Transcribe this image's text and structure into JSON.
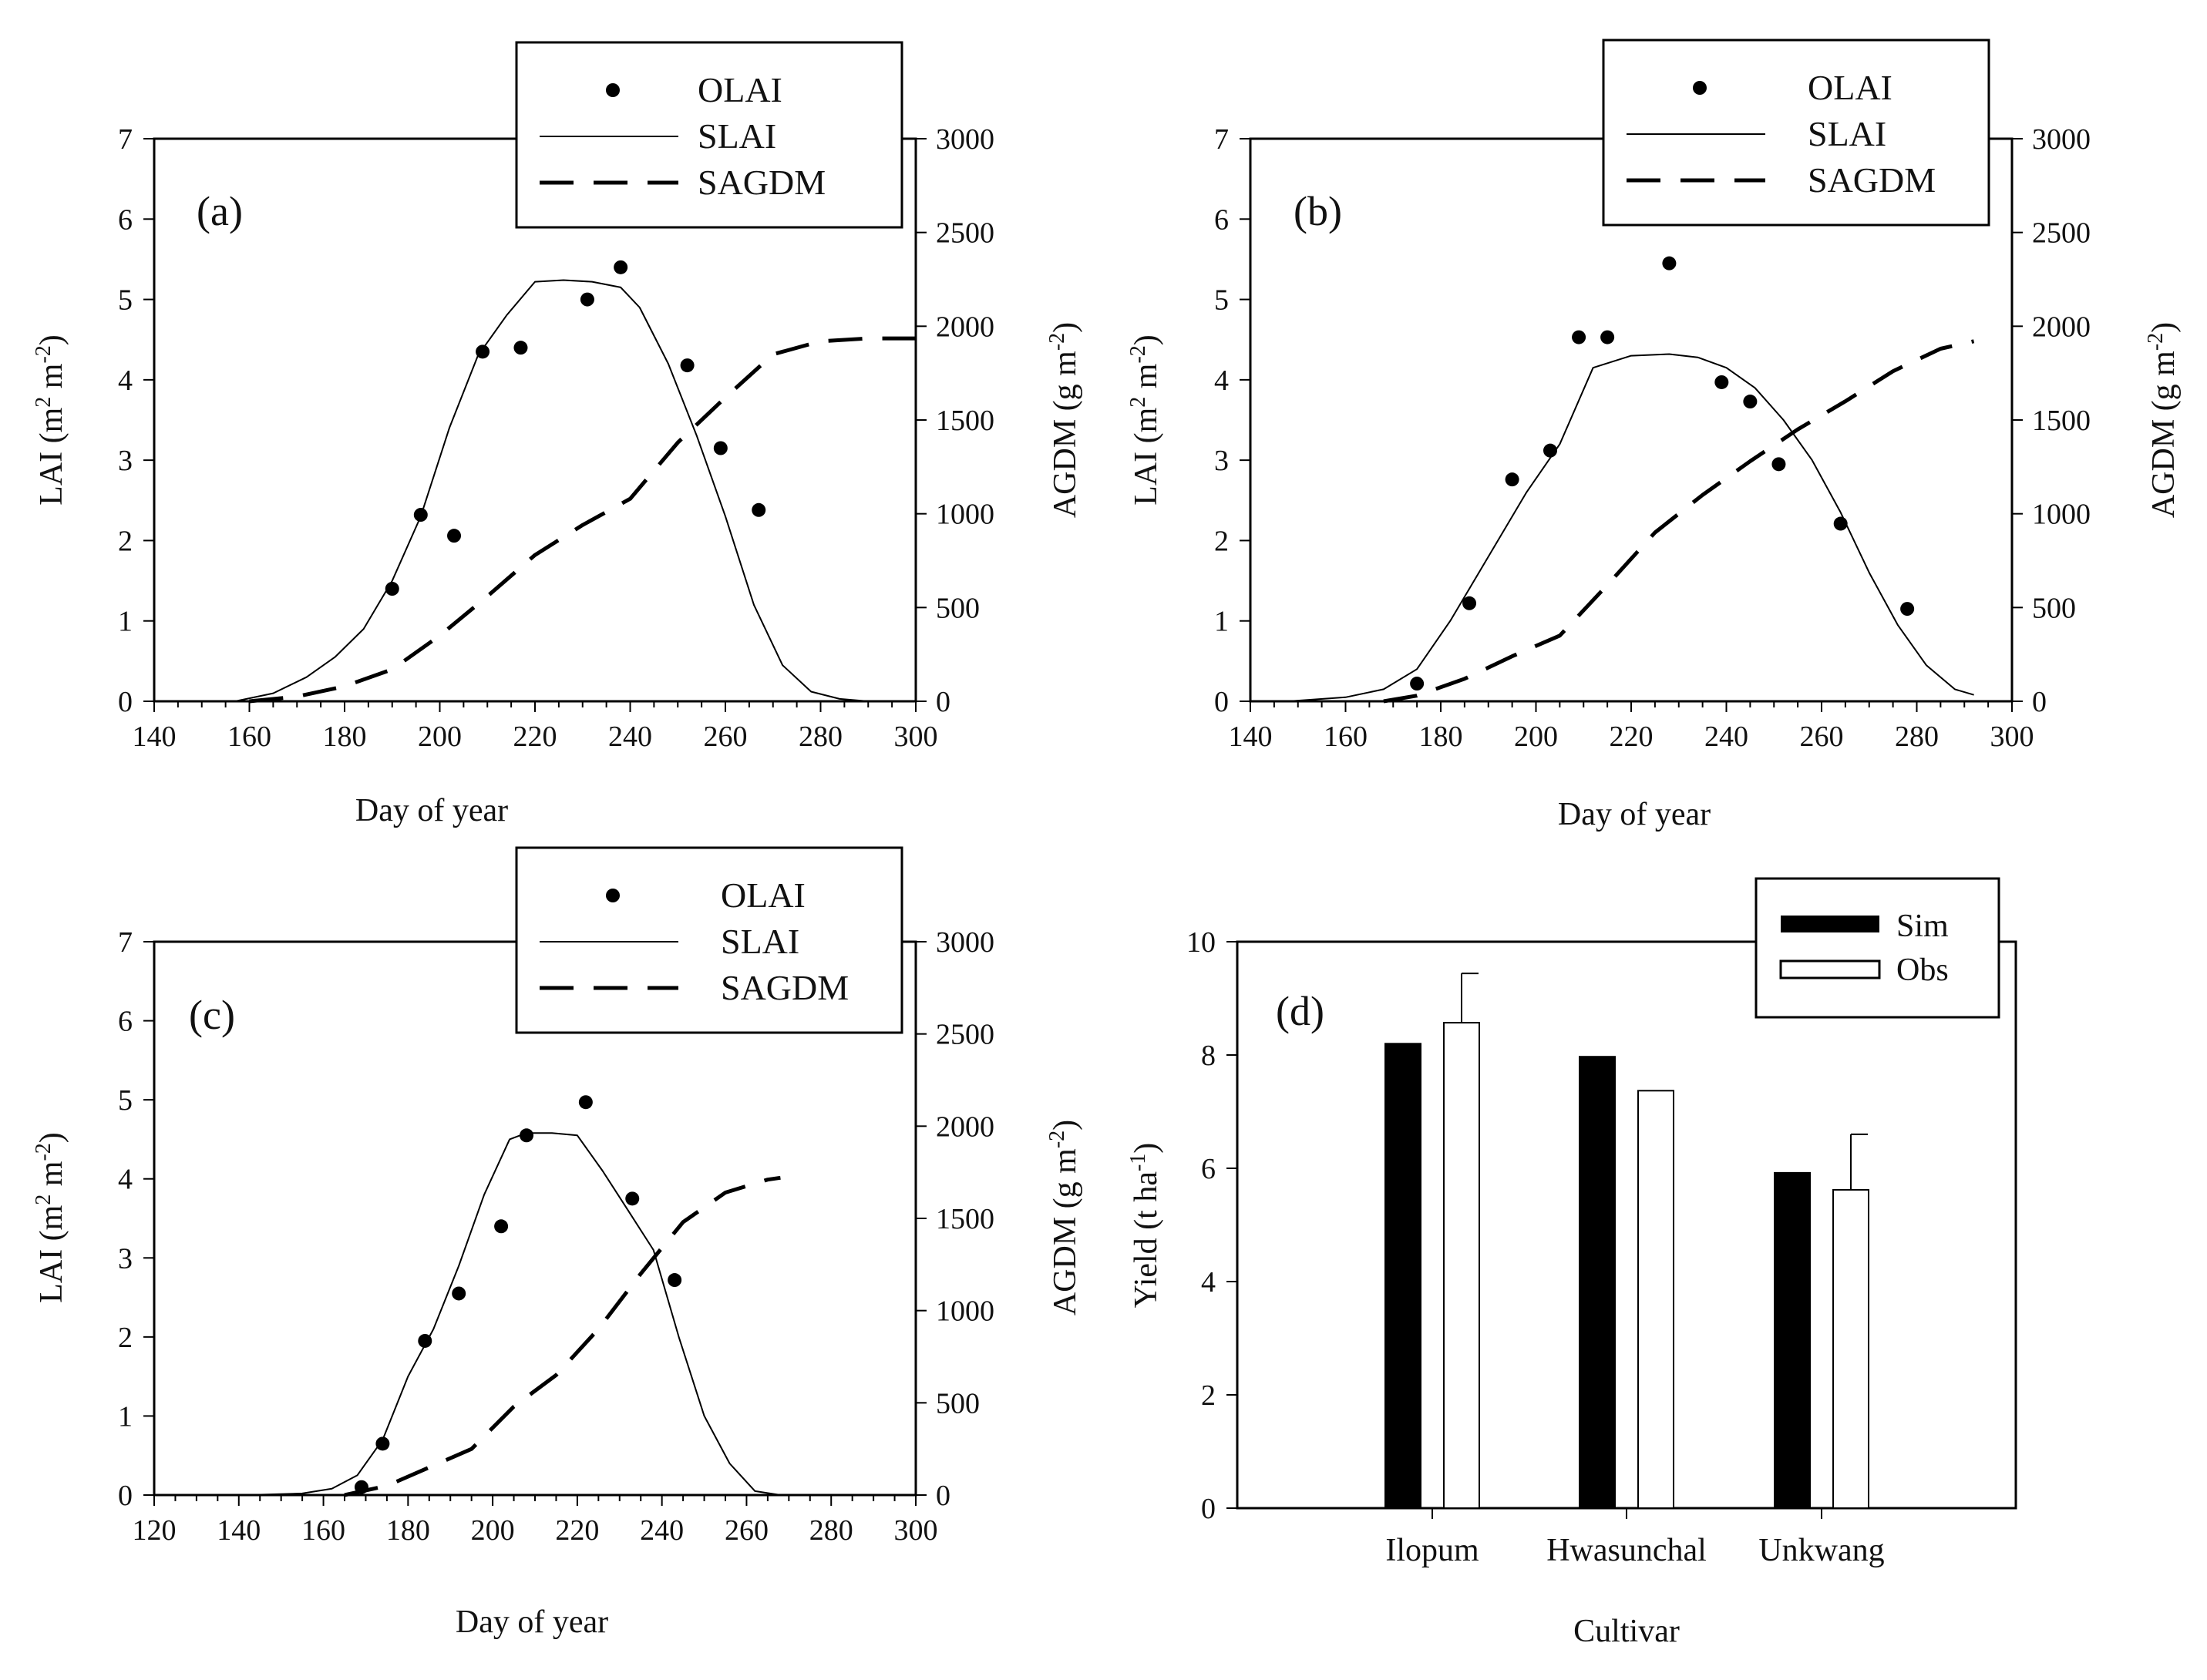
{
  "chart_data": [
    {
      "type": "line",
      "panel_label": "(a)",
      "xlabel": "Day of year",
      "ylabel_main": "LAI (m",
      "ylabel_sup1": "2",
      "ylabel_mid": " m",
      "ylabel_sup2": "-2",
      "ylabel_end": ")",
      "y2label_main": "AGDM (g m",
      "y2label_sup": "-2",
      "y2label_end": ")",
      "xlim": [
        140,
        300
      ],
      "xticks": [
        140,
        160,
        180,
        200,
        220,
        240,
        260,
        280,
        300
      ],
      "ylim": [
        0,
        7
      ],
      "yticks": [
        0,
        1,
        2,
        3,
        4,
        5,
        6,
        7
      ],
      "y2lim": [
        0,
        3000
      ],
      "y2ticks": [
        0,
        500,
        1000,
        1500,
        2000,
        2500,
        3000
      ],
      "legend": [
        "OLAI",
        "SLAI",
        "SAGDM"
      ],
      "series": [
        {
          "name": "OLAI",
          "style": "points",
          "axis": "left",
          "x": [
            190,
            196,
            203,
            209,
            217,
            231,
            238,
            252,
            259,
            267
          ],
          "y": [
            1.4,
            2.32,
            2.06,
            4.35,
            4.4,
            5.0,
            5.4,
            4.18,
            3.15,
            2.38
          ]
        },
        {
          "name": "SLAI",
          "style": "solid",
          "axis": "left",
          "x": [
            157,
            165,
            172,
            178,
            184,
            190,
            196,
            202,
            208,
            214,
            220,
            226,
            232,
            238,
            242,
            248,
            254,
            260,
            266,
            272,
            278,
            284,
            290,
            300
          ],
          "y": [
            0.0,
            0.1,
            0.3,
            0.55,
            0.9,
            1.5,
            2.3,
            3.4,
            4.3,
            4.8,
            5.22,
            5.24,
            5.22,
            5.15,
            4.9,
            4.2,
            3.3,
            2.3,
            1.2,
            0.45,
            0.12,
            0.03,
            0.0,
            0.0
          ]
        },
        {
          "name": "SAGDM",
          "style": "dashed",
          "axis": "right",
          "x": [
            160,
            170,
            180,
            190,
            200,
            210,
            220,
            230,
            240,
            250,
            260,
            270,
            280,
            290,
            300
          ],
          "y": [
            0,
            25,
            80,
            170,
            350,
            560,
            780,
            940,
            1080,
            1380,
            1620,
            1850,
            1920,
            1935,
            1935
          ]
        }
      ]
    },
    {
      "type": "line",
      "panel_label": "(b)",
      "xlabel": "Day of  year",
      "ylabel_main": "LAI (m",
      "ylabel_sup1": "2",
      "ylabel_mid": " m",
      "ylabel_sup2": "-2",
      "ylabel_end": ")",
      "y2label_main": "AGDM (g m",
      "y2label_sup": "-2",
      "y2label_end": ")",
      "xlim": [
        140,
        300
      ],
      "xticks": [
        140,
        160,
        180,
        200,
        220,
        240,
        260,
        280,
        300
      ],
      "ylim": [
        0,
        7
      ],
      "yticks": [
        0,
        1,
        2,
        3,
        4,
        5,
        6,
        7
      ],
      "y2lim": [
        0,
        3000
      ],
      "y2ticks": [
        0,
        500,
        1000,
        1500,
        2000,
        2500,
        3000
      ],
      "legend": [
        "OLAI",
        "SLAI",
        "SAGDM"
      ],
      "series": [
        {
          "name": "OLAI",
          "style": "points",
          "axis": "left",
          "x": [
            175,
            186,
            195,
            203,
            209,
            215,
            228,
            239,
            245,
            251,
            264,
            278
          ],
          "y": [
            0.22,
            1.22,
            2.76,
            3.12,
            4.53,
            4.53,
            5.45,
            3.97,
            3.73,
            2.95,
            2.21,
            1.15
          ]
        },
        {
          "name": "SLAI",
          "style": "solid",
          "axis": "left",
          "x": [
            148,
            160,
            168,
            175,
            182,
            190,
            198,
            205,
            212,
            220,
            228,
            234,
            240,
            246,
            252,
            258,
            264,
            270,
            276,
            282,
            288,
            292
          ],
          "y": [
            0.0,
            0.05,
            0.15,
            0.4,
            1.0,
            1.8,
            2.6,
            3.2,
            4.15,
            4.3,
            4.32,
            4.28,
            4.15,
            3.9,
            3.5,
            3.0,
            2.35,
            1.6,
            0.95,
            0.45,
            0.15,
            0.08
          ]
        },
        {
          "name": "SAGDM",
          "style": "dashed",
          "axis": "right",
          "x": [
            168,
            175,
            185,
            195,
            205,
            215,
            225,
            235,
            245,
            255,
            265,
            275,
            285,
            292
          ],
          "y": [
            0,
            30,
            120,
            240,
            350,
            620,
            900,
            1100,
            1280,
            1450,
            1600,
            1760,
            1880,
            1920
          ]
        }
      ]
    },
    {
      "type": "line",
      "panel_label": "(c)",
      "xlabel": "Day of year",
      "ylabel_main": "LAI (m",
      "ylabel_sup1": "2",
      "ylabel_mid": " m",
      "ylabel_sup2": "-2",
      "ylabel_end": ")",
      "y2label_main": "AGDM (g m",
      "y2label_sup": "-2",
      "y2label_end": ")",
      "xlim": [
        120,
        300
      ],
      "xticks": [
        120,
        140,
        160,
        180,
        200,
        220,
        240,
        260,
        280,
        300
      ],
      "ylim": [
        0,
        7
      ],
      "yticks": [
        0,
        1,
        2,
        3,
        4,
        5,
        6,
        7
      ],
      "y2lim": [
        0,
        3000
      ],
      "y2ticks": [
        0,
        500,
        1000,
        1500,
        2000,
        2500,
        3000
      ],
      "legend": [
        "OLAI",
        "SLAI",
        "SAGDM"
      ],
      "series": [
        {
          "name": "OLAI",
          "style": "points",
          "axis": "left",
          "x": [
            169,
            174,
            184,
            192,
            202,
            208,
            222,
            233,
            243
          ],
          "y": [
            0.1,
            0.65,
            1.95,
            2.55,
            3.4,
            4.55,
            4.97,
            3.75,
            2.72
          ]
        },
        {
          "name": "SLAI",
          "style": "solid",
          "axis": "left",
          "x": [
            142,
            155,
            162,
            168,
            174,
            180,
            186,
            192,
            198,
            204,
            208,
            214,
            220,
            226,
            232,
            238,
            244,
            250,
            256,
            262,
            268
          ],
          "y": [
            0.0,
            0.02,
            0.08,
            0.25,
            0.7,
            1.5,
            2.1,
            2.9,
            3.8,
            4.5,
            4.58,
            4.58,
            4.55,
            4.1,
            3.6,
            3.1,
            2.0,
            1.0,
            0.4,
            0.05,
            0.0
          ]
        },
        {
          "name": "SAGDM",
          "style": "dashed",
          "axis": "right",
          "x": [
            165,
            175,
            185,
            195,
            205,
            215,
            225,
            235,
            245,
            255,
            265,
            268
          ],
          "y": [
            0,
            50,
            150,
            250,
            480,
            650,
            900,
            1200,
            1480,
            1640,
            1710,
            1720
          ]
        }
      ]
    },
    {
      "type": "bar",
      "panel_label": "(d)",
      "xlabel": "Cultivar",
      "ylabel_main": "Yield (t ha",
      "ylabel_sup": "-1",
      "ylabel_end": ")",
      "categories": [
        "Ilopum",
        "Hwasunchal",
        "Unkwang"
      ],
      "ylim": [
        0,
        10
      ],
      "yticks": [
        0,
        2,
        4,
        6,
        8,
        10
      ],
      "legend": [
        "Sim",
        "Obs"
      ],
      "series": [
        {
          "name": "Sim",
          "values": [
            8.2,
            7.97,
            5.92
          ]
        },
        {
          "name": "Obs",
          "values": [
            8.57,
            7.37,
            5.62
          ],
          "errors": [
            0.87,
            0.0,
            0.98
          ]
        }
      ]
    }
  ]
}
